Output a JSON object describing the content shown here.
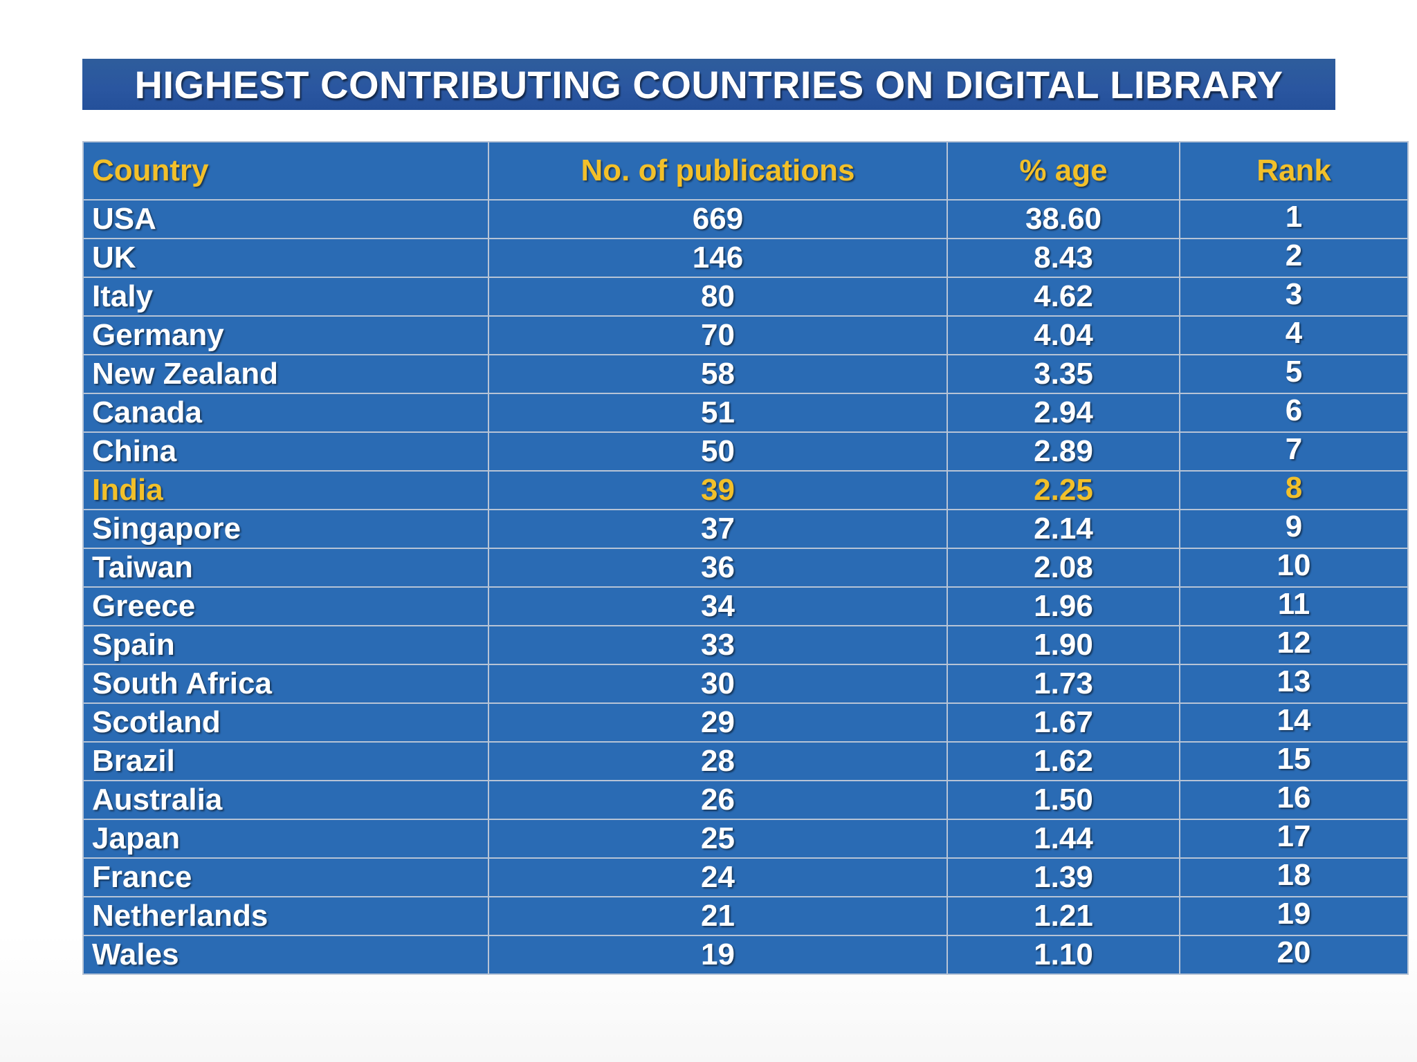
{
  "title": "HIGHEST CONTRIBUTING COUNTRIES ON DIGITAL LIBRARY",
  "chart_data": {
    "type": "table",
    "title": "HIGHEST CONTRIBUTING COUNTRIES ON DIGITAL LIBRARY",
    "columns": [
      "Country",
      "No. of publications",
      "% age",
      "Rank"
    ],
    "rows": [
      {
        "country": "USA",
        "publications": "669",
        "percentage": "38.60",
        "rank": "1"
      },
      {
        "country": "UK",
        "publications": "146",
        "percentage": "8.43",
        "rank": "2"
      },
      {
        "country": "Italy",
        "publications": "80",
        "percentage": "4.62",
        "rank": "3"
      },
      {
        "country": "Germany",
        "publications": "70",
        "percentage": "4.04",
        "rank": "4"
      },
      {
        "country": "New Zealand",
        "publications": "58",
        "percentage": "3.35",
        "rank": "5"
      },
      {
        "country": "Canada",
        "publications": "51",
        "percentage": "2.94",
        "rank": "6"
      },
      {
        "country": "China",
        "publications": "50",
        "percentage": "2.89",
        "rank": "7"
      },
      {
        "country": "India",
        "publications": "39",
        "percentage": "2.25",
        "rank": "8",
        "highlighted": true
      },
      {
        "country": "Singapore",
        "publications": "37",
        "percentage": "2.14",
        "rank": "9"
      },
      {
        "country": "Taiwan",
        "publications": "36",
        "percentage": "2.08",
        "rank": "10"
      },
      {
        "country": "Greece",
        "publications": "34",
        "percentage": "1.96",
        "rank": "11"
      },
      {
        "country": "Spain",
        "publications": "33",
        "percentage": "1.90",
        "rank": "12"
      },
      {
        "country": "South Africa",
        "publications": "30",
        "percentage": "1.73",
        "rank": "13"
      },
      {
        "country": "Scotland",
        "publications": "29",
        "percentage": "1.67",
        "rank": "14"
      },
      {
        "country": "Brazil",
        "publications": "28",
        "percentage": "1.62",
        "rank": "15"
      },
      {
        "country": "Australia",
        "publications": "26",
        "percentage": "1.50",
        "rank": "16"
      },
      {
        "country": "Japan",
        "publications": "25",
        "percentage": "1.44",
        "rank": "17"
      },
      {
        "country": "France",
        "publications": "24",
        "percentage": "1.39",
        "rank": "18"
      },
      {
        "country": "Netherlands",
        "publications": "21",
        "percentage": "1.21",
        "rank": "19"
      },
      {
        "country": "Wales",
        "publications": "19",
        "percentage": "1.10",
        "rank": "20"
      }
    ]
  },
  "colors": {
    "banner": "#2a56a0",
    "table_background": "#2a6bb4",
    "grid_lines": "#b7c4d6",
    "header_text": "#f2c02a",
    "highlight_text": "#f2c02a",
    "body_text": "#ffffff"
  }
}
